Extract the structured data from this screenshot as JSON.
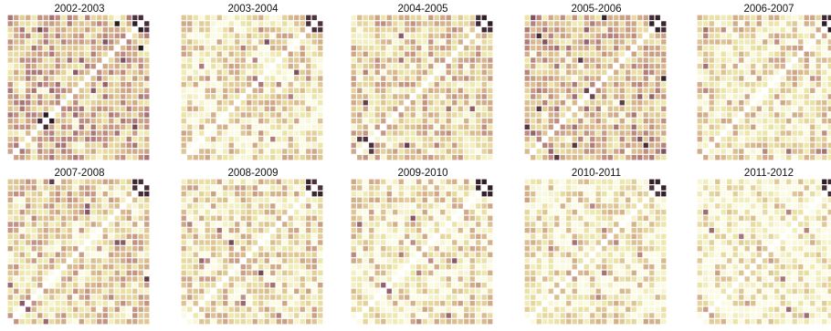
{
  "chart_data": {
    "type": "heatmap",
    "title": "",
    "xlabel": "",
    "ylabel": "",
    "description_matrix_size": 24,
    "color_scale": [
      "#fbfbe6",
      "#ece6a8",
      "#d9b88d",
      "#c08c82",
      "#8a5a6a",
      "#2a1a22"
    ],
    "diagonal_color": "#ffffff",
    "panels": [
      {
        "title": "2002-2003",
        "mean_intensity": 0.48
      },
      {
        "title": "2003-2004",
        "mean_intensity": 0.26
      },
      {
        "title": "2004-2005",
        "mean_intensity": 0.36
      },
      {
        "title": "2005-2006",
        "mean_intensity": 0.46
      },
      {
        "title": "2006-2007",
        "mean_intensity": 0.27
      },
      {
        "title": "2007-2008",
        "mean_intensity": 0.34
      },
      {
        "title": "2008-2009",
        "mean_intensity": 0.28
      },
      {
        "title": "2009-2010",
        "mean_intensity": 0.24
      },
      {
        "title": "2010-2011",
        "mean_intensity": 0.19
      },
      {
        "title": "2011-2012",
        "mean_intensity": 0.12
      }
    ]
  }
}
